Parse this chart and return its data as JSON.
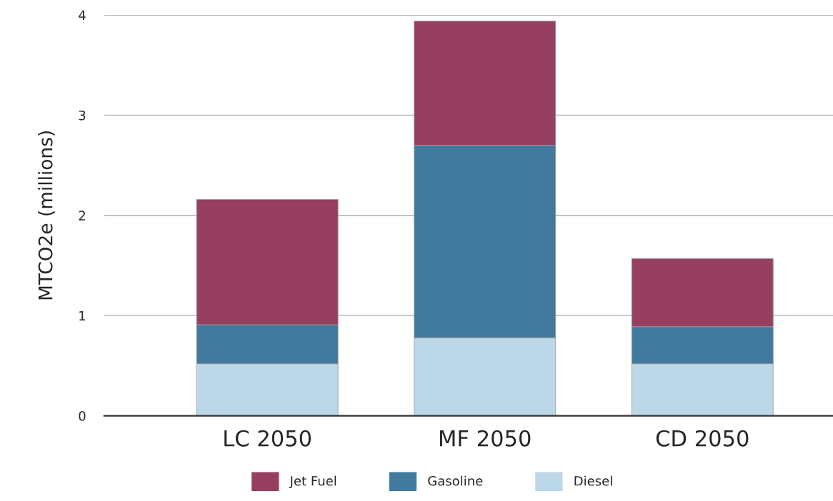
{
  "chart_data": {
    "type": "bar",
    "stacked": true,
    "ylabel": "MTCO2e (millions)",
    "categories": [
      "LC 2050",
      "MF 2050",
      "CD 2050"
    ],
    "series": [
      {
        "name": "Diesel",
        "color": "#bcd7e8",
        "values": [
          0.52,
          0.78,
          0.52
        ]
      },
      {
        "name": "Gasoline",
        "color": "#417a9c",
        "values": [
          0.39,
          1.92,
          0.37
        ]
      },
      {
        "name": "Jet Fuel",
        "color": "#963f60",
        "values": [
          1.25,
          1.24,
          0.68
        ]
      }
    ],
    "ylim": [
      0,
      4
    ],
    "yticks": [
      0,
      1,
      2,
      3,
      4
    ],
    "grid": "y",
    "legend": "bottom"
  }
}
